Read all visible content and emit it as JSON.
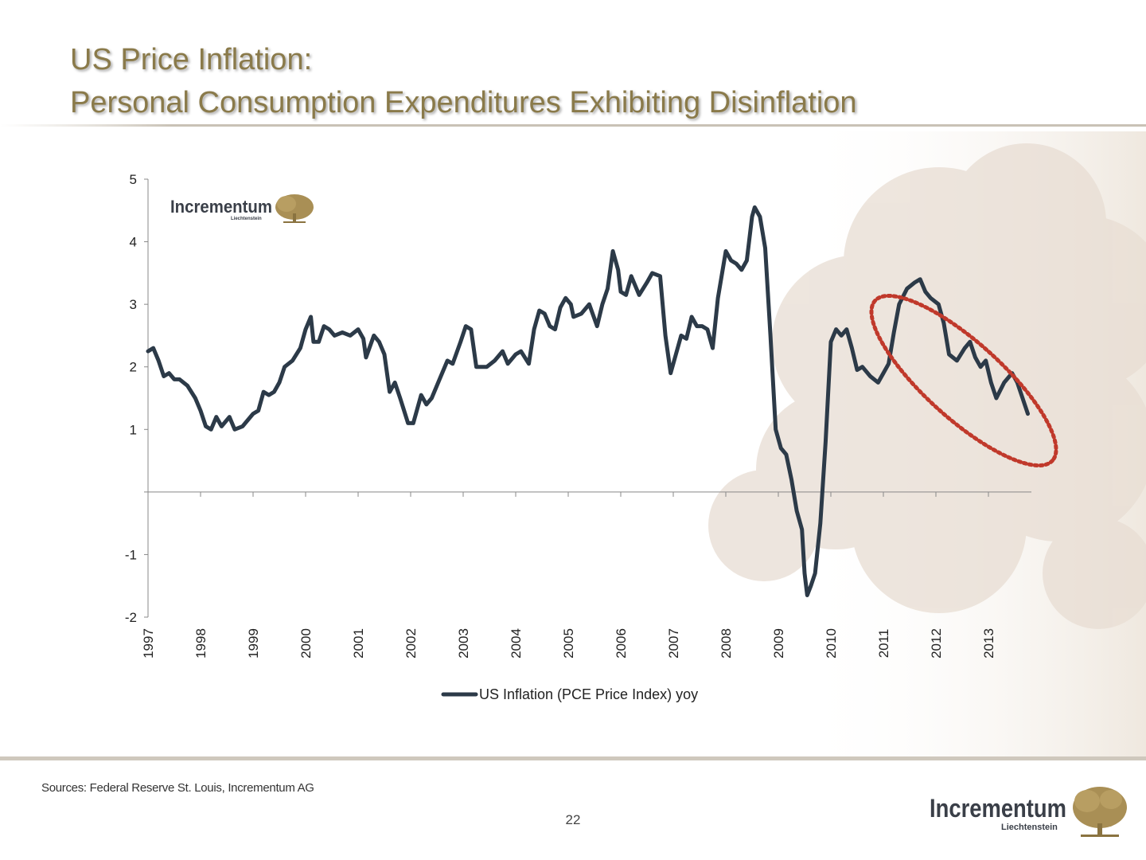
{
  "slide": {
    "title_line1": "US Price Inflation:",
    "title_line2": "Personal Consumption Expenditures Exhibiting Disinflation",
    "sources": "Sources: Federal Reserve St. Louis, Incrementum AG",
    "page_number": "22"
  },
  "logo": {
    "name": "Incrementum",
    "tagline": "Liechtenstein"
  },
  "colors": {
    "title": "#8a7a4a",
    "line": "#2c3a48",
    "highlight": "#c0392b",
    "logo_gold": "#a98f55",
    "logo_text": "#3a3f48"
  },
  "chart_data": {
    "type": "line",
    "title": "",
    "xlabel": "",
    "ylabel": "",
    "ylim": [
      -2,
      5
    ],
    "y_ticks": [
      "-2",
      "-1",
      "",
      "1",
      "2",
      "3",
      "4",
      "5"
    ],
    "x_ticks": [
      "1997",
      "1998",
      "1999",
      "2000",
      "2001",
      "2002",
      "2003",
      "2004",
      "2005",
      "2006",
      "2007",
      "2008",
      "2009",
      "2010",
      "2011",
      "2012",
      "2013"
    ],
    "grid": false,
    "legend": "bottom-center",
    "highlight": "dotted red ellipse around 2011–2013 decline",
    "series": [
      {
        "name": "US Inflation (PCE Price Index) yoy",
        "points": [
          [
            1997.0,
            2.25
          ],
          [
            1997.1,
            2.3
          ],
          [
            1997.2,
            2.1
          ],
          [
            1997.3,
            1.85
          ],
          [
            1997.4,
            1.9
          ],
          [
            1997.5,
            1.8
          ],
          [
            1997.6,
            1.8
          ],
          [
            1997.75,
            1.7
          ],
          [
            1997.9,
            1.5
          ],
          [
            1998.0,
            1.3
          ],
          [
            1998.1,
            1.05
          ],
          [
            1998.2,
            1.0
          ],
          [
            1998.3,
            1.2
          ],
          [
            1998.4,
            1.05
          ],
          [
            1998.55,
            1.2
          ],
          [
            1998.65,
            1.0
          ],
          [
            1998.8,
            1.05
          ],
          [
            1999.0,
            1.25
          ],
          [
            1999.1,
            1.3
          ],
          [
            1999.2,
            1.6
          ],
          [
            1999.3,
            1.55
          ],
          [
            1999.4,
            1.6
          ],
          [
            1999.5,
            1.75
          ],
          [
            1999.6,
            2.0
          ],
          [
            1999.75,
            2.1
          ],
          [
            1999.9,
            2.3
          ],
          [
            2000.0,
            2.6
          ],
          [
            2000.1,
            2.8
          ],
          [
            2000.15,
            2.4
          ],
          [
            2000.25,
            2.4
          ],
          [
            2000.35,
            2.65
          ],
          [
            2000.45,
            2.6
          ],
          [
            2000.55,
            2.5
          ],
          [
            2000.7,
            2.55
          ],
          [
            2000.85,
            2.5
          ],
          [
            2001.0,
            2.6
          ],
          [
            2001.1,
            2.45
          ],
          [
            2001.15,
            2.15
          ],
          [
            2001.3,
            2.5
          ],
          [
            2001.4,
            2.4
          ],
          [
            2001.5,
            2.2
          ],
          [
            2001.6,
            1.6
          ],
          [
            2001.7,
            1.75
          ],
          [
            2001.8,
            1.5
          ],
          [
            2001.95,
            1.1
          ],
          [
            2002.05,
            1.1
          ],
          [
            2002.2,
            1.55
          ],
          [
            2002.3,
            1.4
          ],
          [
            2002.4,
            1.5
          ],
          [
            2002.55,
            1.8
          ],
          [
            2002.7,
            2.1
          ],
          [
            2002.8,
            2.05
          ],
          [
            2002.95,
            2.4
          ],
          [
            2003.05,
            2.65
          ],
          [
            2003.15,
            2.6
          ],
          [
            2003.25,
            2.0
          ],
          [
            2003.45,
            2.0
          ],
          [
            2003.6,
            2.1
          ],
          [
            2003.75,
            2.25
          ],
          [
            2003.85,
            2.05
          ],
          [
            2004.0,
            2.2
          ],
          [
            2004.1,
            2.25
          ],
          [
            2004.25,
            2.05
          ],
          [
            2004.35,
            2.6
          ],
          [
            2004.45,
            2.9
          ],
          [
            2004.55,
            2.85
          ],
          [
            2004.65,
            2.65
          ],
          [
            2004.75,
            2.6
          ],
          [
            2004.85,
            2.95
          ],
          [
            2004.95,
            3.1
          ],
          [
            2005.05,
            3.0
          ],
          [
            2005.1,
            2.8
          ],
          [
            2005.25,
            2.85
          ],
          [
            2005.4,
            3.0
          ],
          [
            2005.55,
            2.65
          ],
          [
            2005.65,
            3.0
          ],
          [
            2005.75,
            3.25
          ],
          [
            2005.85,
            3.85
          ],
          [
            2005.95,
            3.55
          ],
          [
            2006.0,
            3.2
          ],
          [
            2006.1,
            3.15
          ],
          [
            2006.2,
            3.45
          ],
          [
            2006.35,
            3.15
          ],
          [
            2006.5,
            3.35
          ],
          [
            2006.6,
            3.5
          ],
          [
            2006.75,
            3.45
          ],
          [
            2006.85,
            2.5
          ],
          [
            2006.95,
            1.9
          ],
          [
            2007.05,
            2.2
          ],
          [
            2007.15,
            2.5
          ],
          [
            2007.25,
            2.45
          ],
          [
            2007.35,
            2.8
          ],
          [
            2007.45,
            2.65
          ],
          [
            2007.55,
            2.65
          ],
          [
            2007.65,
            2.6
          ],
          [
            2007.75,
            2.3
          ],
          [
            2007.85,
            3.1
          ],
          [
            2008.0,
            3.85
          ],
          [
            2008.1,
            3.7
          ],
          [
            2008.2,
            3.65
          ],
          [
            2008.3,
            3.55
          ],
          [
            2008.4,
            3.7
          ],
          [
            2008.5,
            4.4
          ],
          [
            2008.55,
            4.55
          ],
          [
            2008.65,
            4.4
          ],
          [
            2008.75,
            3.9
          ],
          [
            2008.85,
            2.5
          ],
          [
            2008.95,
            1.0
          ],
          [
            2009.05,
            0.7
          ],
          [
            2009.15,
            0.6
          ],
          [
            2009.25,
            0.2
          ],
          [
            2009.35,
            -0.3
          ],
          [
            2009.45,
            -0.6
          ],
          [
            2009.5,
            -1.3
          ],
          [
            2009.55,
            -1.65
          ],
          [
            2009.62,
            -1.5
          ],
          [
            2009.7,
            -1.3
          ],
          [
            2009.8,
            -0.5
          ],
          [
            2009.9,
            0.8
          ],
          [
            2010.0,
            2.4
          ],
          [
            2010.1,
            2.6
          ],
          [
            2010.2,
            2.5
          ],
          [
            2010.3,
            2.6
          ],
          [
            2010.4,
            2.3
          ],
          [
            2010.5,
            1.95
          ],
          [
            2010.6,
            2.0
          ],
          [
            2010.75,
            1.85
          ],
          [
            2010.9,
            1.75
          ],
          [
            2011.0,
            1.9
          ],
          [
            2011.1,
            2.05
          ],
          [
            2011.2,
            2.55
          ],
          [
            2011.3,
            3.0
          ],
          [
            2011.45,
            3.25
          ],
          [
            2011.6,
            3.35
          ],
          [
            2011.7,
            3.4
          ],
          [
            2011.8,
            3.2
          ],
          [
            2011.9,
            3.1
          ],
          [
            2012.05,
            3.0
          ],
          [
            2012.15,
            2.7
          ],
          [
            2012.25,
            2.2
          ],
          [
            2012.4,
            2.1
          ],
          [
            2012.55,
            2.3
          ],
          [
            2012.65,
            2.4
          ],
          [
            2012.75,
            2.15
          ],
          [
            2012.85,
            2.0
          ],
          [
            2012.95,
            2.1
          ],
          [
            2013.05,
            1.75
          ],
          [
            2013.15,
            1.5
          ],
          [
            2013.3,
            1.75
          ],
          [
            2013.45,
            1.9
          ],
          [
            2013.55,
            1.75
          ],
          [
            2013.65,
            1.5
          ],
          [
            2013.75,
            1.25
          ]
        ]
      }
    ]
  }
}
